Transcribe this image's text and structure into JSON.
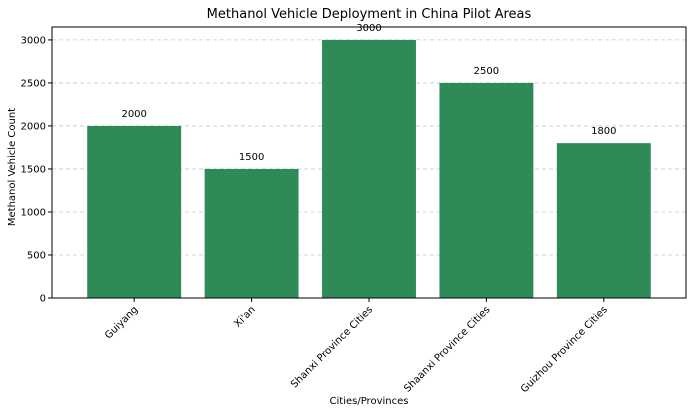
{
  "chart_data": {
    "type": "bar",
    "title": "Methanol Vehicle Deployment in China Pilot Areas",
    "xlabel": "Cities/Provinces",
    "ylabel": "Methanol Vehicle Count",
    "categories": [
      "Guiyang",
      "Xi'an",
      "Shanxi Province Cities",
      "Shaanxi Province Cities",
      "Guizhou Province Cities"
    ],
    "values": [
      2000,
      1500,
      3000,
      2500,
      1800
    ],
    "data_labels": [
      "2000",
      "1500",
      "3000",
      "2500",
      "1800"
    ],
    "ylim": [
      0,
      3150
    ],
    "yticks": [
      0,
      500,
      1000,
      1500,
      2000,
      2500,
      3000
    ],
    "ytick_labels": [
      "0",
      "500",
      "1000",
      "1500",
      "2000",
      "2500",
      "3000"
    ],
    "grid": "horizontal dashed",
    "bar_color": "#2e8b57"
  }
}
